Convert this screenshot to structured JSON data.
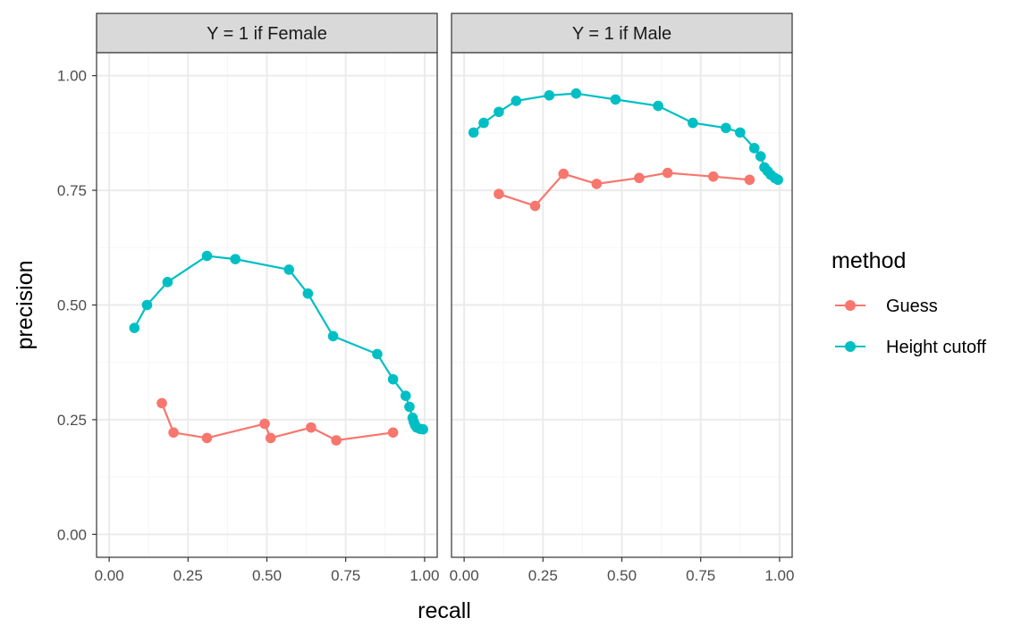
{
  "colors": {
    "Guess": "#F8766D",
    "Height cutoff": "#00BFC4",
    "strip_fill": "#D9D9D9",
    "grid_major": "#EBEBEB",
    "grid_minor": "#F5F5F5",
    "panel_border": "#333333"
  },
  "chart_data": {
    "type": "line",
    "xlabel": "recall",
    "ylabel": "precision",
    "xlim": [
      -0.04,
      1.04
    ],
    "ylim": [
      -0.05,
      1.05
    ],
    "x_ticks": [
      "0.00",
      "0.25",
      "0.50",
      "0.75",
      "1.00"
    ],
    "y_ticks": [
      "0.00",
      "0.25",
      "0.50",
      "0.75",
      "1.00"
    ],
    "grid": true,
    "legend": {
      "title": "method",
      "position": "right",
      "entries": [
        "Guess",
        "Height cutoff"
      ]
    },
    "panels": [
      {
        "strip": "Y = 1 if Female",
        "series": [
          {
            "name": "Guess",
            "points": [
              [
                0.167,
                0.286
              ],
              [
                0.204,
                0.222
              ],
              [
                0.31,
                0.21
              ],
              [
                0.493,
                0.241
              ],
              [
                0.512,
                0.21
              ],
              [
                0.64,
                0.233
              ],
              [
                0.72,
                0.205
              ],
              [
                0.9,
                0.222
              ]
            ]
          },
          {
            "name": "Height cutoff",
            "points": [
              [
                0.08,
                0.45
              ],
              [
                0.12,
                0.5
              ],
              [
                0.185,
                0.55
              ],
              [
                0.31,
                0.607
              ],
              [
                0.4,
                0.6
              ],
              [
                0.57,
                0.577
              ],
              [
                0.63,
                0.525
              ],
              [
                0.71,
                0.432
              ],
              [
                0.85,
                0.393
              ],
              [
                0.9,
                0.338
              ],
              [
                0.94,
                0.302
              ],
              [
                0.952,
                0.278
              ],
              [
                0.962,
                0.254
              ],
              [
                0.966,
                0.245
              ],
              [
                0.97,
                0.238
              ],
              [
                0.975,
                0.233
              ],
              [
                0.985,
                0.23
              ],
              [
                0.995,
                0.229
              ]
            ]
          }
        ]
      },
      {
        "strip": "Y = 1 if Male",
        "series": [
          {
            "name": "Guess",
            "points": [
              [
                0.11,
                0.742
              ],
              [
                0.225,
                0.716
              ],
              [
                0.315,
                0.786
              ],
              [
                0.42,
                0.764
              ],
              [
                0.555,
                0.777
              ],
              [
                0.645,
                0.788
              ],
              [
                0.79,
                0.78
              ],
              [
                0.905,
                0.773
              ]
            ]
          },
          {
            "name": "Height cutoff",
            "points": [
              [
                0.03,
                0.876
              ],
              [
                0.062,
                0.897
              ],
              [
                0.11,
                0.921
              ],
              [
                0.165,
                0.945
              ],
              [
                0.27,
                0.957
              ],
              [
                0.355,
                0.961
              ],
              [
                0.48,
                0.948
              ],
              [
                0.615,
                0.934
              ],
              [
                0.725,
                0.897
              ],
              [
                0.83,
                0.886
              ],
              [
                0.875,
                0.876
              ],
              [
                0.92,
                0.842
              ],
              [
                0.94,
                0.824
              ],
              [
                0.952,
                0.8
              ],
              [
                0.962,
                0.792
              ],
              [
                0.972,
                0.784
              ],
              [
                0.985,
                0.777
              ],
              [
                0.995,
                0.773
              ]
            ]
          }
        ]
      }
    ]
  }
}
